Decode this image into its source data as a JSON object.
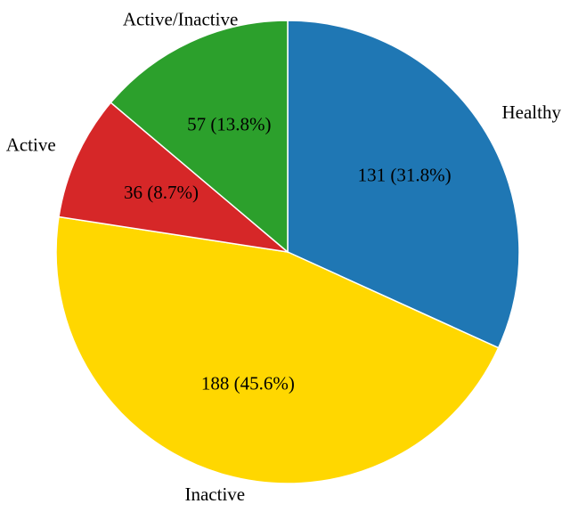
{
  "chart_data": {
    "type": "pie",
    "categories": [
      "Healthy",
      "Inactive",
      "Active",
      "Active/Inactive"
    ],
    "values": [
      131,
      188,
      36,
      57
    ],
    "value_labels": [
      "131 (31.8%)",
      "188 (45.6%)",
      "36 (8.7%)",
      "57 (13.8%)"
    ],
    "colors": [
      "#1f77b4",
      "#ffd700",
      "#d62728",
      "#2ca02c"
    ]
  }
}
